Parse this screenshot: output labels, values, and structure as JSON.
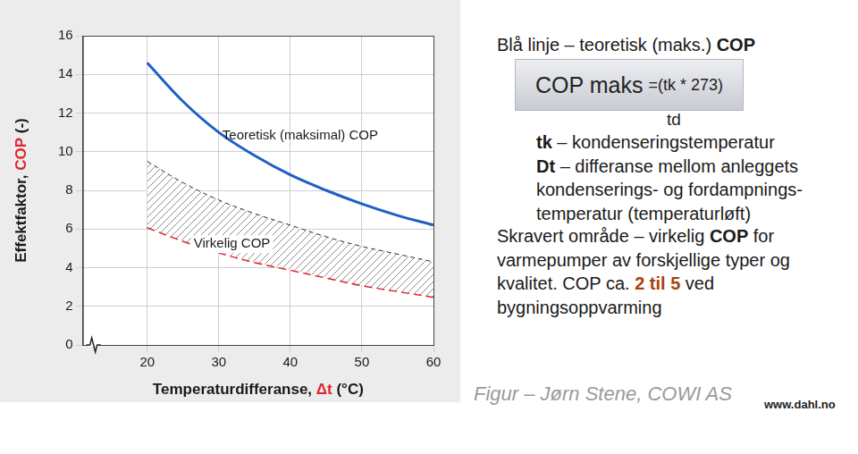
{
  "chart_data": {
    "type": "line",
    "x_label": [
      {
        "text": "Temperaturdifferanse, "
      },
      {
        "text": "Δt",
        "color": "#e0232b"
      },
      {
        "text": " (°C)"
      }
    ],
    "y_label": [
      {
        "text": "Effektfaktor, "
      },
      {
        "text": "COP",
        "color": "#e0232b"
      },
      {
        "text": " (-)"
      }
    ],
    "x": [
      20,
      25,
      30,
      35,
      40,
      45,
      50,
      55,
      60
    ],
    "series": [
      {
        "name": "Teoretisk (maksimal) COP",
        "color": "#1f5fc4",
        "line_style": "solid",
        "values": [
          14.6,
          12.6,
          11.0,
          9.8,
          8.8,
          8.0,
          7.3,
          6.7,
          6.2
        ]
      },
      {
        "name": "Virkelig COP",
        "type": "range",
        "color": "#e0232b",
        "line_style": "dashed",
        "values": [
          6.1,
          5.4,
          4.8,
          4.3,
          3.9,
          3.5,
          3.1,
          2.8,
          2.5
        ],
        "upper": [
          9.5,
          8.4,
          7.5,
          6.8,
          6.2,
          5.6,
          5.1,
          4.7,
          4.3
        ]
      }
    ],
    "xlim": [
      11,
      60
    ],
    "xticks": [
      20,
      30,
      40,
      50,
      60
    ],
    "ylim": [
      0,
      16
    ],
    "yticks": [
      0,
      2,
      4,
      6,
      8,
      10,
      12,
      14,
      16
    ],
    "grid": true,
    "legend": "none"
  },
  "notes": {
    "heading": [
      {
        "text": "Blå linje – teoretisk (maks.) "
      },
      {
        "text": "COP",
        "bold": true
      }
    ],
    "formula": {
      "main": "COP maks",
      "rest": "=(tk * 273)",
      "denominator": "td"
    },
    "definitions": [
      [
        {
          "text": "tk",
          "bold": true
        },
        {
          "text": " – kondenseringstemperatur"
        }
      ],
      [
        {
          "text": "Dt",
          "bold": true
        },
        {
          "text": " – differanse mellom anleggets"
        }
      ],
      [
        {
          "text": "kondenserings- og fordampnings-"
        }
      ],
      [
        {
          "text": "temperatur (temperaturløft)"
        }
      ]
    ],
    "paragraph": [
      [
        {
          "text": "Skravert område – virkelig "
        },
        {
          "text": "COP",
          "bold": true
        },
        {
          "text": " for"
        }
      ],
      [
        {
          "text": "varmepumper av forskjellige typer og"
        }
      ],
      [
        {
          "text": "kvalitet. COP ca. "
        },
        {
          "text": "2 til 5",
          "bold": true,
          "color": "#a8420c"
        },
        {
          "text": " ved"
        }
      ],
      [
        {
          "text": "bygningsoppvarming"
        }
      ]
    ],
    "credit": "Figur – Jørn Stene, COWI AS",
    "site": "www.dahl.no"
  }
}
